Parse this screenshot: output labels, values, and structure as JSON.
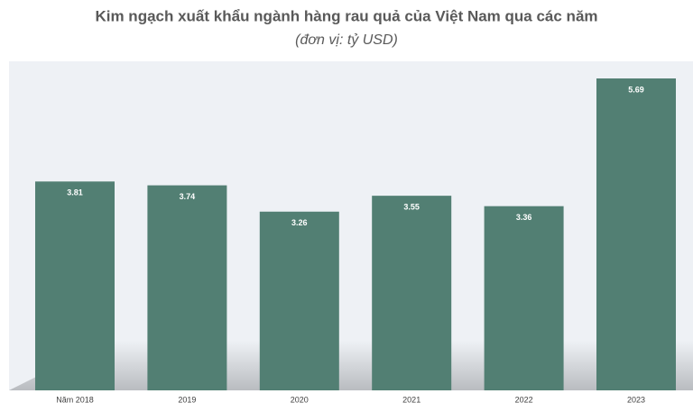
{
  "chart_data": {
    "type": "bar",
    "title": "Kim ngạch xuất khẩu ngành hàng rau quả của Việt Nam qua các năm",
    "subtitle": "(đơn vị: tỷ USD)",
    "categories": [
      "Năm 2018",
      "2019",
      "2020",
      "2021",
      "2022",
      "2023"
    ],
    "values": [
      3.81,
      3.74,
      3.26,
      3.55,
      3.36,
      5.69
    ],
    "color": "#527f73"
  }
}
